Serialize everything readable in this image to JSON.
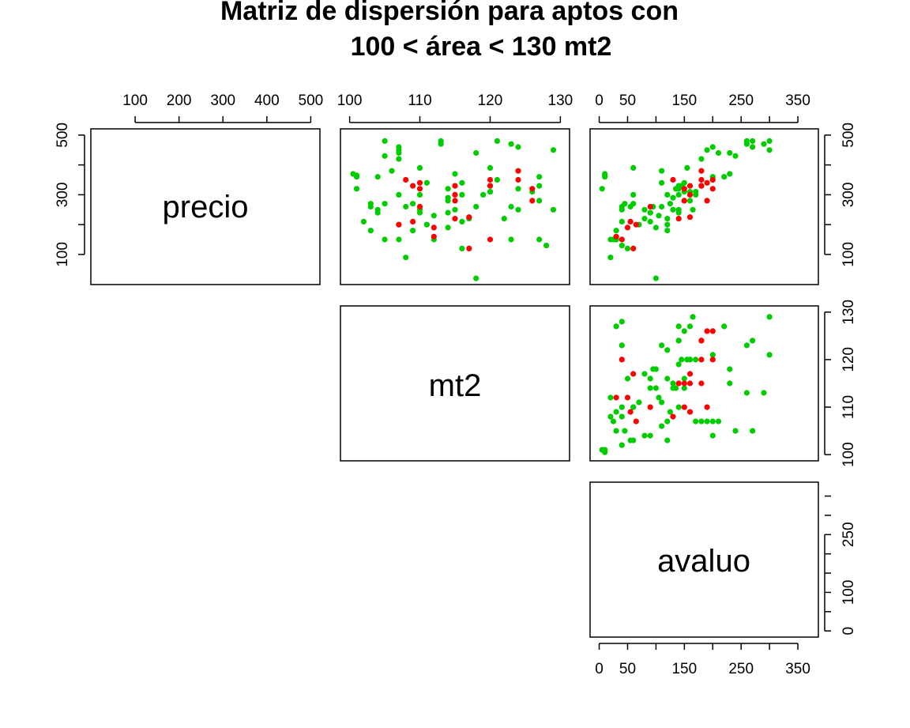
{
  "chart_data": {
    "type": "scatter",
    "title": {
      "line1": "Matriz de dispersión para aptos con",
      "line2": "100 < área < 130 mt2"
    },
    "variables": [
      "precio",
      "mt2",
      "avaluo"
    ],
    "ranges": {
      "precio": [
        20,
        500
      ],
      "mt2": [
        100,
        130
      ],
      "avaluo": [
        0,
        370
      ]
    },
    "ticks": {
      "precio_top": [
        100,
        200,
        300,
        400,
        500
      ],
      "precio_left": [
        100,
        300,
        500
      ],
      "mt2_top": [
        100,
        110,
        120,
        130
      ],
      "mt2_right": [
        100,
        110,
        120,
        130
      ],
      "avaluo_top": [
        0,
        50,
        150,
        250,
        350
      ],
      "avaluo_bottom": [
        0,
        50,
        150,
        250,
        350
      ],
      "precio_right": [
        100,
        300,
        500
      ],
      "avaluo_right": [
        0,
        100,
        250
      ]
    },
    "colors": {
      "green": "#00cd00",
      "red": "#ff0000"
    },
    "series": [
      {
        "color": "green",
        "points": [
          [
            370,
            100.5,
            10
          ],
          [
            360,
            101,
            10
          ],
          [
            365,
            101,
            10
          ],
          [
            320,
            101,
            5
          ],
          [
            210,
            102,
            40
          ],
          [
            260,
            103,
            55
          ],
          [
            270,
            103,
            60
          ],
          [
            250,
            104,
            80
          ],
          [
            240,
            104,
            90
          ],
          [
            480,
            105,
            270
          ],
          [
            430,
            105,
            240
          ],
          [
            270,
            105,
            45
          ],
          [
            150,
            105,
            30
          ],
          [
            380,
            106,
            110
          ],
          [
            460,
            107,
            200
          ],
          [
            300,
            107,
            170
          ],
          [
            440,
            107,
            210
          ],
          [
            200,
            107,
            120
          ],
          [
            90,
            108,
            20
          ],
          [
            420,
            107,
            180
          ],
          [
            450,
            107,
            190
          ],
          [
            150,
            107,
            25
          ],
          [
            260,
            108,
            40
          ],
          [
            180,
            109,
            30
          ],
          [
            250,
            110,
            40
          ],
          [
            300,
            110,
            60
          ],
          [
            390,
            110,
            60
          ],
          [
            240,
            110,
            140
          ],
          [
            340,
            111,
            110
          ],
          [
            200,
            111,
            70
          ],
          [
            150,
            112,
            20
          ],
          [
            470,
            113,
            290
          ],
          [
            290,
            114,
            130
          ],
          [
            280,
            114,
            150
          ],
          [
            320,
            114,
            135
          ],
          [
            250,
            115,
            130
          ],
          [
            480,
            113,
            260
          ],
          [
            300,
            116,
            120
          ],
          [
            340,
            116,
            150
          ],
          [
            190,
            114,
            100
          ],
          [
            210,
            116,
            90
          ],
          [
            120,
            116,
            50
          ],
          [
            220,
            117,
            80
          ],
          [
            260,
            118,
            95
          ],
          [
            440,
            118,
            230
          ],
          [
            20,
            118,
            100
          ],
          [
            300,
            119,
            140
          ],
          [
            330,
            120,
            145
          ],
          [
            310,
            120,
            160
          ],
          [
            390,
            120,
            155
          ],
          [
            350,
            121,
            200
          ],
          [
            480,
            121,
            300
          ],
          [
            220,
            122,
            120
          ],
          [
            260,
            123,
            110
          ],
          [
            150,
            123,
            40
          ],
          [
            470,
            123,
            260
          ],
          [
            320,
            124,
            140
          ],
          [
            250,
            124,
            140
          ],
          [
            460,
            124,
            270
          ],
          [
            150,
            127,
            30
          ],
          [
            360,
            127,
            220
          ],
          [
            130,
            128,
            40
          ],
          [
            330,
            127,
            140
          ],
          [
            310,
            126,
            150
          ],
          [
            280,
            127,
            160
          ],
          [
            450,
            129,
            300
          ],
          [
            250,
            129,
            165
          ],
          [
            310,
            120,
            170
          ],
          [
            370,
            115,
            230
          ],
          [
            240,
            114,
            90
          ],
          [
            270,
            109,
            125
          ],
          [
            230,
            112,
            105
          ],
          [
            360,
            104,
            200
          ],
          [
            180,
            103,
            120
          ]
        ]
      },
      {
        "color": "red",
        "points": [
          [
            350,
            108,
            130
          ],
          [
            200,
            107,
            65
          ],
          [
            330,
            109,
            160
          ],
          [
            320,
            110,
            150
          ],
          [
            210,
            109,
            55
          ],
          [
            260,
            110,
            90
          ],
          [
            190,
            112,
            50
          ],
          [
            160,
            112,
            30
          ],
          [
            220,
            115,
            140
          ],
          [
            300,
            115,
            160
          ],
          [
            280,
            115,
            150
          ],
          [
            330,
            115,
            180
          ],
          [
            120,
            117,
            60
          ],
          [
            225,
            117,
            160
          ],
          [
            350,
            120,
            200
          ],
          [
            330,
            120,
            180
          ],
          [
            150,
            120,
            40
          ],
          [
            380,
            124,
            180
          ],
          [
            350,
            124,
            180
          ],
          [
            280,
            126,
            190
          ],
          [
            320,
            126,
            200
          ],
          [
            340,
            110,
            190
          ]
        ]
      }
    ],
    "legend": "none"
  }
}
